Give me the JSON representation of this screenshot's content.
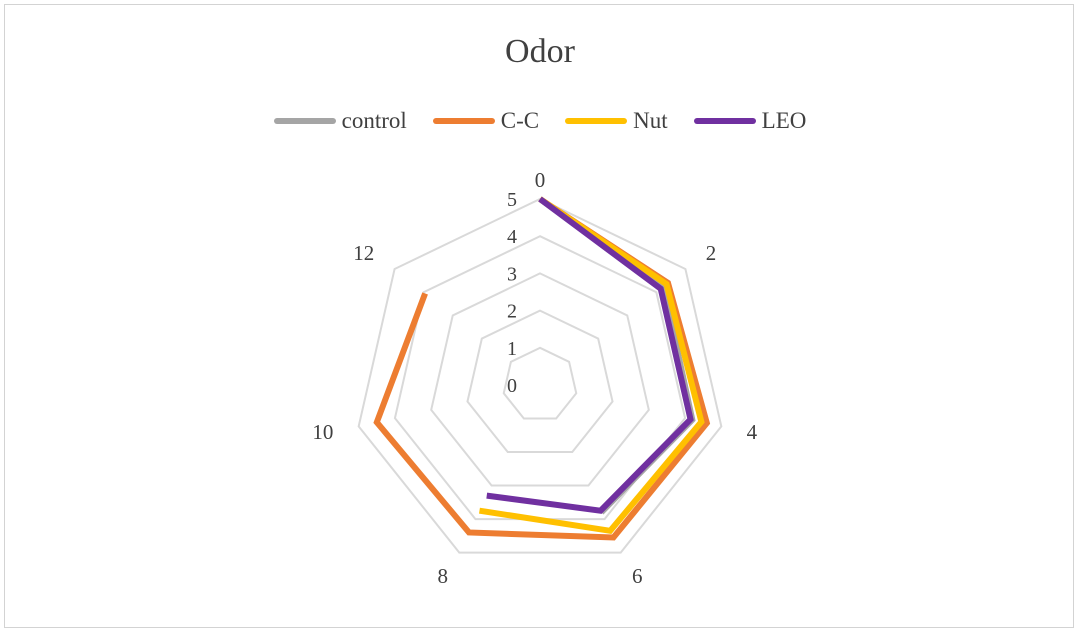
{
  "chart_data": {
    "type": "radar",
    "title": "Odor",
    "categories": [
      "0",
      "2",
      "4",
      "6",
      "8",
      "10",
      "12"
    ],
    "rlim": [
      0,
      5
    ],
    "r_ticks": [
      "0",
      "1",
      "2",
      "3",
      "4",
      "5"
    ],
    "grid": true,
    "legend_position": "top",
    "series": [
      {
        "name": "control",
        "color": "#a5a5a5",
        "values": [
          5,
          4.25,
          4.2,
          3.8,
          null,
          null,
          null
        ]
      },
      {
        "name": "C-C",
        "color": "#ed7d31",
        "values": [
          5,
          4.4,
          4.6,
          4.55,
          4.4,
          4.5,
          3.95
        ]
      },
      {
        "name": "Nut",
        "color": "#ffc000",
        "values": [
          5,
          4.35,
          4.45,
          4.35,
          3.75,
          null,
          null
        ]
      },
      {
        "name": "LEO",
        "color": "#7030a0",
        "values": [
          5,
          4.15,
          4.15,
          3.75,
          3.3,
          null,
          null
        ]
      }
    ]
  }
}
